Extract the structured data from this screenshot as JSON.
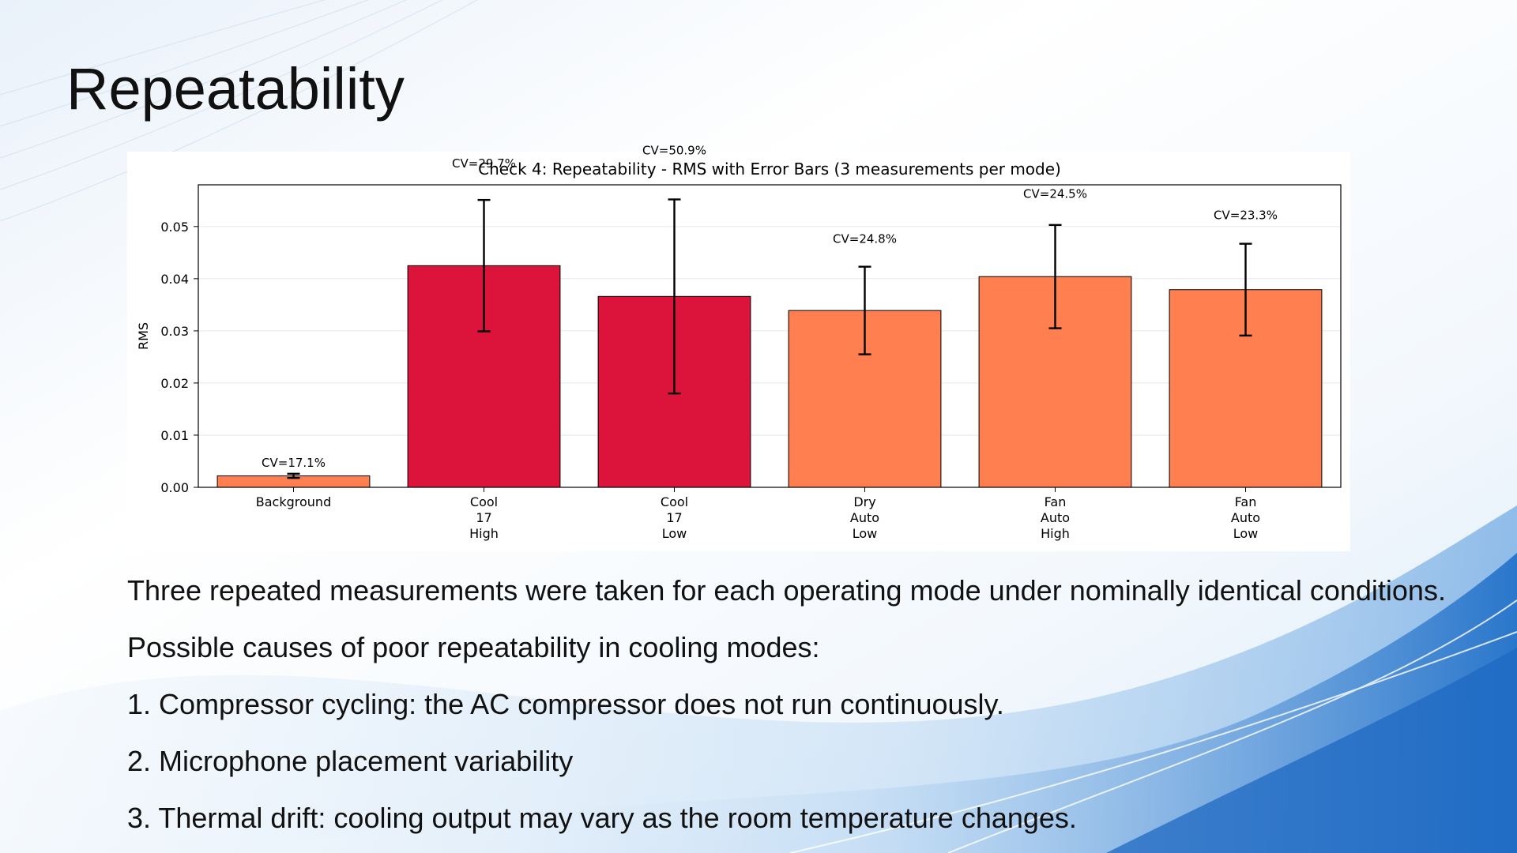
{
  "slide": {
    "title": "Repeatability",
    "notes": [
      "Three repeated measurements were taken for each operating mode under nominally identical conditions.",
      "Possible causes of poor repeatability in cooling modes:",
      "1. Compressor cycling: the AC compressor does not run continuously.",
      "2. Microphone placement variability",
      "3. Thermal drift: cooling output may vary as the room temperature changes."
    ]
  },
  "colors": {
    "cooling": "#dc143c",
    "other": "#ff7f50",
    "bar_edge": "#000000",
    "grid": "#e6e6e6"
  },
  "chart_data": {
    "type": "bar",
    "title": "Check 4: Repeatability - RMS with Error Bars (3 measurements per mode)",
    "xlabel": "",
    "ylabel": "RMS",
    "ylim": [
      0,
      0.058
    ],
    "yticks": [
      0.0,
      0.01,
      0.02,
      0.03,
      0.04,
      0.05
    ],
    "ytick_labels": [
      "0.00",
      "0.01",
      "0.02",
      "0.03",
      "0.04",
      "0.05"
    ],
    "grid": true,
    "categories": [
      [
        "Background"
      ],
      [
        "Cool",
        "17",
        "High"
      ],
      [
        "Cool",
        "17",
        "Low"
      ],
      [
        "Dry",
        "Auto",
        "Low"
      ],
      [
        "Fan",
        "Auto",
        "High"
      ],
      [
        "Fan",
        "Auto",
        "Low"
      ]
    ],
    "values": [
      0.0022,
      0.0425,
      0.0366,
      0.0339,
      0.0404,
      0.0379
    ],
    "errors": [
      0.0004,
      0.0126,
      0.0186,
      0.0084,
      0.0099,
      0.0088
    ],
    "bar_color_keys": [
      "other",
      "cooling",
      "cooling",
      "other",
      "other",
      "other"
    ],
    "annotations": [
      "CV=17.1%",
      "CV=29.7%",
      "CV=50.9%",
      "CV=24.8%",
      "CV=24.5%",
      "CV=23.3%"
    ]
  }
}
